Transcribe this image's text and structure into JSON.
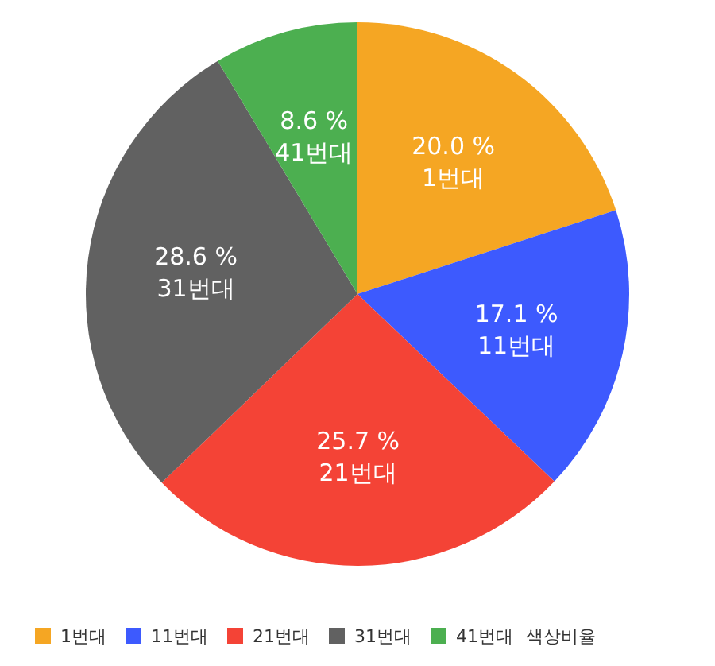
{
  "chart_data": {
    "type": "pie",
    "categories": [
      "1번대",
      "11번대",
      "21번대",
      "31번대",
      "41번대"
    ],
    "values": [
      20.0,
      17.1,
      25.7,
      28.6,
      8.6
    ],
    "value_labels": [
      "20.0 %",
      "17.1 %",
      "25.7 %",
      "28.6 %",
      "8.6 %"
    ],
    "colors": [
      "#f5a623",
      "#3d5afe",
      "#f44336",
      "#616161",
      "#4caf50"
    ],
    "legend": "bottom",
    "legend_title": "색상비율"
  }
}
